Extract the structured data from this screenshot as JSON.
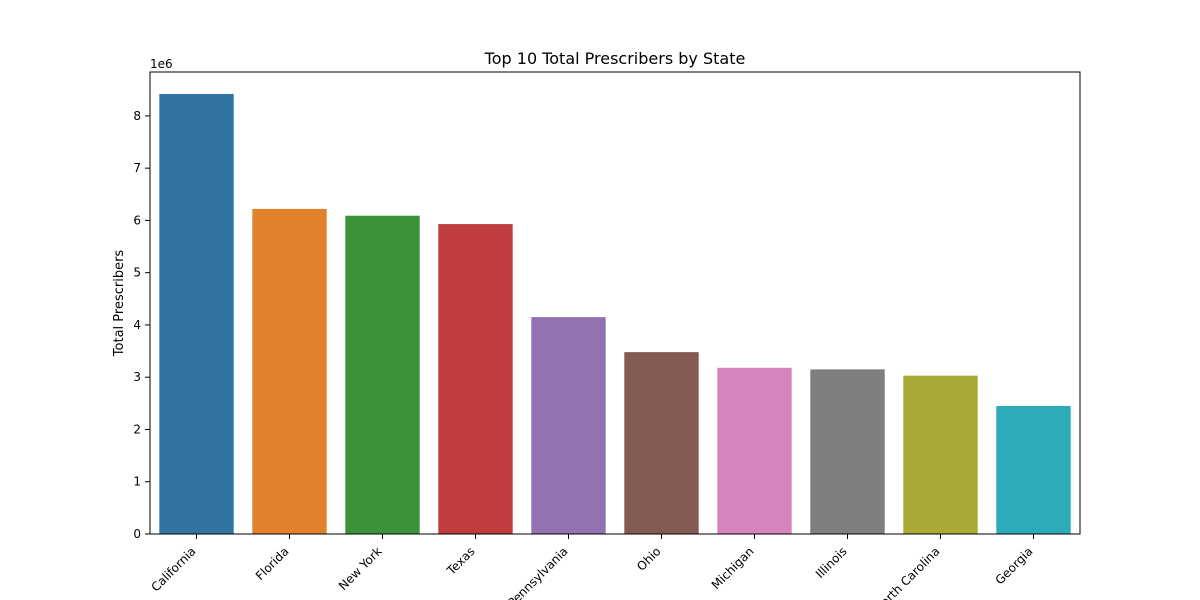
{
  "chart_data": {
    "type": "bar",
    "title": "Top 10 Total Prescribers by State",
    "xlabel": "",
    "ylabel": "Total Prescribers",
    "offset_text": "1e6",
    "categories": [
      "California",
      "Florida",
      "New York",
      "Texas",
      "Pennsylvania",
      "Ohio",
      "Michigan",
      "Illinois",
      "North Carolina",
      "Georgia"
    ],
    "values": [
      8420000,
      6220000,
      6090000,
      5930000,
      4150000,
      3480000,
      3180000,
      3150000,
      3030000,
      2450000
    ],
    "ylim": [
      0,
      8840000
    ],
    "yticks": [
      0,
      1000000,
      2000000,
      3000000,
      4000000,
      5000000,
      6000000,
      7000000,
      8000000
    ],
    "ytick_labels": [
      "0",
      "1",
      "2",
      "3",
      "4",
      "5",
      "6",
      "7",
      "8"
    ],
    "colors": [
      "#3274a1",
      "#e1812c",
      "#3a923a",
      "#c03d3e",
      "#9372b2",
      "#845b53",
      "#d684bd",
      "#7f7f7f",
      "#a9aa35",
      "#2eabb8"
    ],
    "grid": false,
    "legend": false
  }
}
